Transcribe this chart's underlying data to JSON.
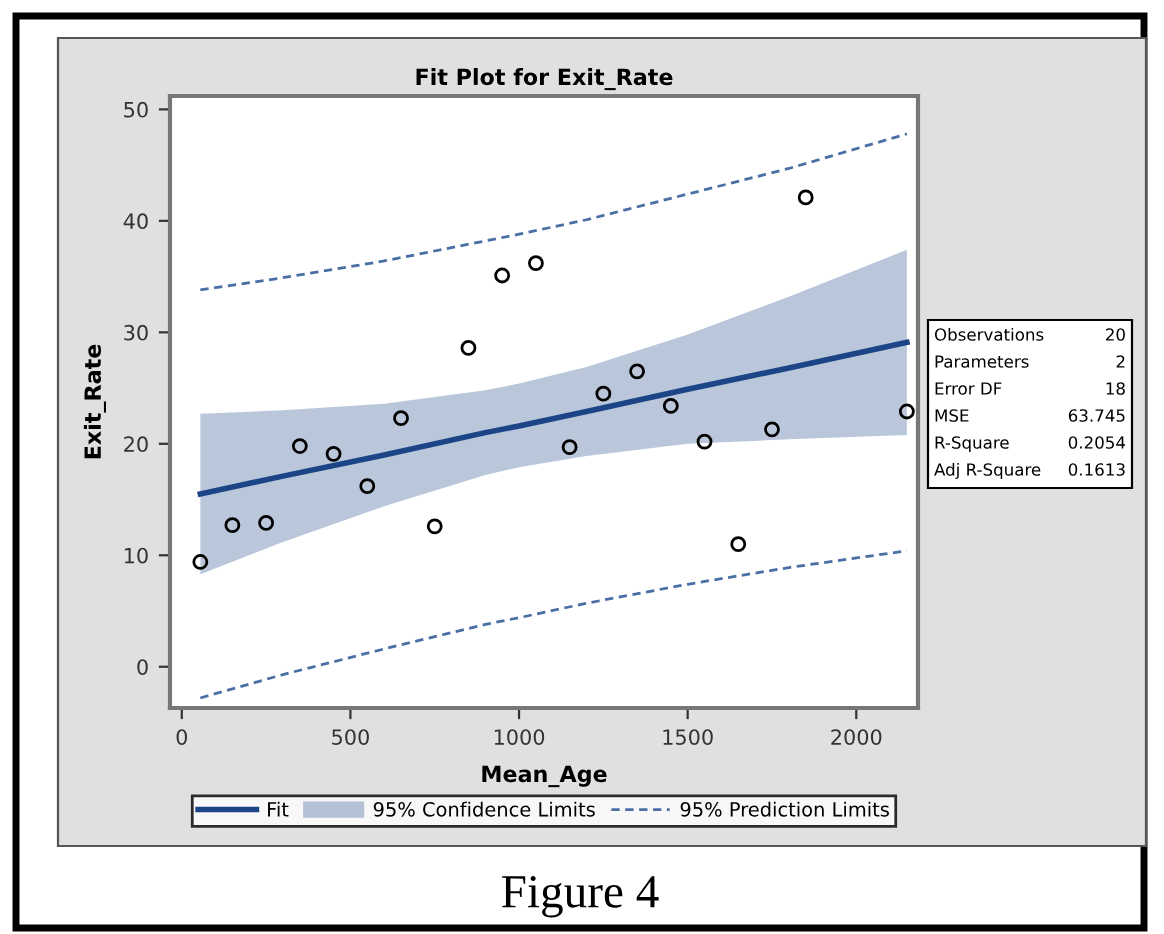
{
  "chart_data": {
    "type": "scatter",
    "title": "Fit Plot for Exit_Rate",
    "xlabel": "Mean_Age",
    "ylabel": "Exit_Rate",
    "x": [
      55,
      150,
      250,
      350,
      450,
      550,
      650,
      750,
      850,
      950,
      1050,
      1150,
      1250,
      1350,
      1450,
      1550,
      1650,
      1750,
      1850,
      2150
    ],
    "series": [
      {
        "color": "#000000",
        "marker": "circle",
        "values": [
          9.4,
          12.7,
          12.9,
          19.8,
          19.1,
          16.2,
          22.3,
          12.6,
          28.6,
          35.1,
          36.2,
          19.7,
          24.5,
          26.5,
          23.4,
          20.2,
          11.0,
          21.3,
          42.1,
          22.9
        ]
      },
      {
        "type": "line",
        "name": "Fit",
        "color": "#1c4587",
        "line_style": "solid",
        "x": [
          55,
          300,
          600,
          900,
          1000,
          1200,
          1500,
          1800,
          2150
        ],
        "values": [
          15.5,
          17.1,
          19.0,
          21.0,
          21.6,
          22.9,
          24.9,
          26.8,
          29.1
        ],
        "lower": [
          8.3,
          11.2,
          14.4,
          17.2,
          17.9,
          18.9,
          20.0,
          20.4,
          20.8
        ],
        "upper": [
          22.7,
          23.0,
          23.6,
          24.8,
          25.4,
          26.9,
          29.8,
          33.2,
          37.4
        ]
      },
      {
        "type": "line",
        "name": "95% Prediction Limits",
        "color": "#4a6fa5",
        "line_style": "dashed",
        "x": [
          55,
          300,
          600,
          900,
          1000,
          1200,
          1500,
          1800,
          2150
        ],
        "values": [
          33.8,
          34.9,
          36.4,
          38.2,
          38.8,
          40.1,
          42.4,
          44.7,
          47.8
        ]
      },
      {
        "type": "line",
        "color": "#4a6fa5",
        "line_style": "dashed",
        "x": [
          55,
          300,
          600,
          900,
          1000,
          1200,
          1500,
          1800,
          2150
        ],
        "values": [
          -2.8,
          -0.7,
          1.6,
          3.8,
          4.4,
          5.7,
          7.4,
          8.9,
          10.4
        ]
      }
    ],
    "xlim": [
      -35,
      2183
    ],
    "ylim": [
      -3.7,
      51.2
    ],
    "xticks": [
      0,
      500,
      1000,
      1500,
      2000
    ],
    "yticks": [
      0,
      10,
      20,
      30,
      40,
      50
    ],
    "grid": false,
    "legend": "bottom",
    "annotations": [
      "Observations 20",
      "Parameters 2",
      "Error DF 18",
      "MSE 63.745",
      "R-Square 0.2054",
      "Adj R-Square 0.1613",
      "Figure 4",
      "95% Confidence Limits"
    ]
  }
}
